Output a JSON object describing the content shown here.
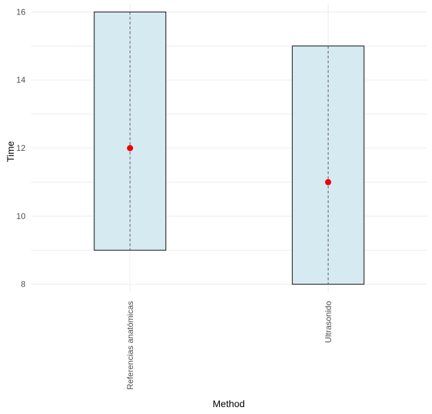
{
  "chart_data": {
    "type": "box",
    "categories": [
      "Referencias anatómicas",
      "Ultrasonido"
    ],
    "series": [
      {
        "values": [
          {
            "category": "Referencias anatómicas",
            "low": 9,
            "high": 16,
            "point": 12
          },
          {
            "category": "Ultrasonido",
            "low": 8,
            "high": 15,
            "point": 11
          }
        ]
      }
    ],
    "xlabel": "Method",
    "ylabel": "Time",
    "ylim": [
      7.75,
      16.25
    ],
    "yticks": [
      8,
      10,
      12,
      14,
      16
    ],
    "grid": true,
    "legend": "none",
    "colors": {
      "box_fill": "#d6eaf1",
      "box_stroke": "#000000",
      "whisker": "#555555",
      "point": "#ee0000",
      "grid": "#ebebeb",
      "tick_text": "#4d4d4d"
    }
  }
}
